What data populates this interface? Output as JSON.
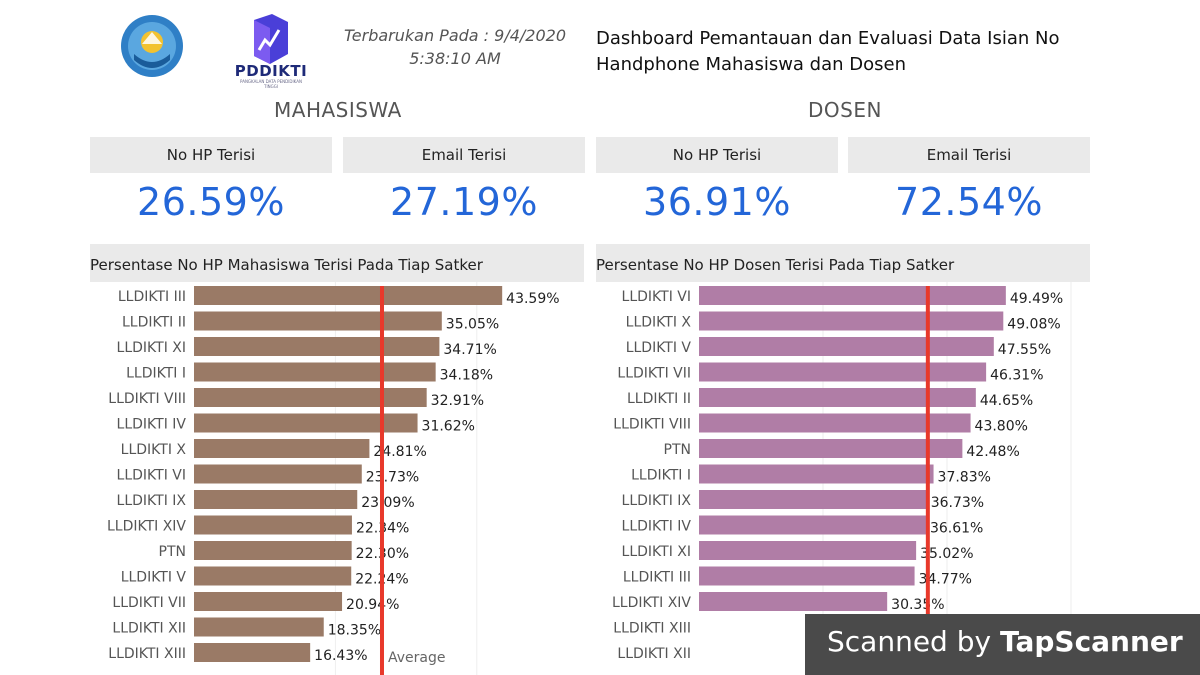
{
  "header": {
    "logo_left": "kemdikbud-emblem",
    "logo_right_text": "PDDIKTI",
    "logo_right_subtitle": "PANGKALAN DATA PENDIDIKAN TINGGI",
    "updated_line1": "Terbarukan Pada : 9/4/2020",
    "updated_line2": "5:38:10 AM",
    "title_line1": "Dashboard Pemantauan dan Evaluasi Data Isian No",
    "title_line2": "Handphone Mahasiswa dan Dosen"
  },
  "mahasiswa": {
    "section_title": "MAHASISWA",
    "kpis": [
      {
        "label": "No HP Terisi",
        "value": "26.59%"
      },
      {
        "label": "Email Terisi",
        "value": "27.19%"
      }
    ],
    "chart_title": "Persentase No HP Mahasiswa Terisi Pada Tiap Satker"
  },
  "dosen": {
    "section_title": "DOSEN",
    "kpis": [
      {
        "label": "No HP Terisi",
        "value": "36.91%"
      },
      {
        "label": "Email Terisi",
        "value": "72.54%"
      }
    ],
    "chart_title": "Persentase No HP Dosen Terisi Pada Tiap Satker"
  },
  "watermark": {
    "prefix": "Scanned by ",
    "brand": "TapScanner"
  },
  "colors": {
    "mahasiswa_bar": "#9a7a66",
    "dosen_bar": "#b07da6",
    "average_line": "#e8392b",
    "kpi_value": "#2366d8"
  },
  "chart_data": [
    {
      "type": "bar",
      "orientation": "horizontal",
      "title": "Persentase No HP Mahasiswa Terisi Pada Tiap Satker",
      "categories": [
        "LLDIKTI III",
        "LLDIKTI II",
        "LLDIKTI XI",
        "LLDIKTI I",
        "LLDIKTI VIII",
        "LLDIKTI IV",
        "LLDIKTI X",
        "LLDIKTI VI",
        "LLDIKTI IX",
        "LLDIKTI XIV",
        "PTN",
        "LLDIKTI V",
        "LLDIKTI VII",
        "LLDIKTI XII",
        "LLDIKTI XIII"
      ],
      "values": [
        43.59,
        35.05,
        34.71,
        34.18,
        32.91,
        31.62,
        24.81,
        23.73,
        23.09,
        22.34,
        22.3,
        22.24,
        20.94,
        18.35,
        16.43
      ],
      "labels": [
        "43.59%",
        "35.05%",
        "34.71%",
        "34.18%",
        "32.91%",
        "31.62%",
        "24.81%",
        "23.73%",
        "23.09%",
        "22.34%",
        "22.30%",
        "22.24%",
        "20.94%",
        "18.35%",
        "16.43%"
      ],
      "reference_line": {
        "value": 26.59,
        "label": "Average"
      },
      "xlim": [
        0,
        60
      ]
    },
    {
      "type": "bar",
      "orientation": "horizontal",
      "title": "Persentase No HP Dosen Terisi Pada Tiap Satker",
      "categories": [
        "LLDIKTI VI",
        "LLDIKTI X",
        "LLDIKTI V",
        "LLDIKTI VII",
        "LLDIKTI II",
        "LLDIKTI VIII",
        "PTN",
        "LLDIKTI I",
        "LLDIKTI IX",
        "LLDIKTI IV",
        "LLDIKTI XI",
        "LLDIKTI III",
        "LLDIKTI XIV",
        "LLDIKTI XIII",
        "LLDIKTI XII"
      ],
      "values": [
        49.49,
        49.08,
        47.55,
        46.31,
        44.65,
        43.8,
        42.48,
        37.83,
        36.73,
        36.61,
        35.02,
        34.77,
        30.35,
        null,
        null
      ],
      "labels": [
        "49.49%",
        "49.08%",
        "47.55%",
        "46.31%",
        "44.65%",
        "43.80%",
        "42.48%",
        "37.83%",
        "36.73%",
        "36.61%",
        "35.02%",
        "34.77%",
        "30.35%",
        "",
        ""
      ],
      "reference_line": {
        "value": 36.91,
        "label": ""
      },
      "xlim": [
        0,
        60
      ]
    }
  ]
}
